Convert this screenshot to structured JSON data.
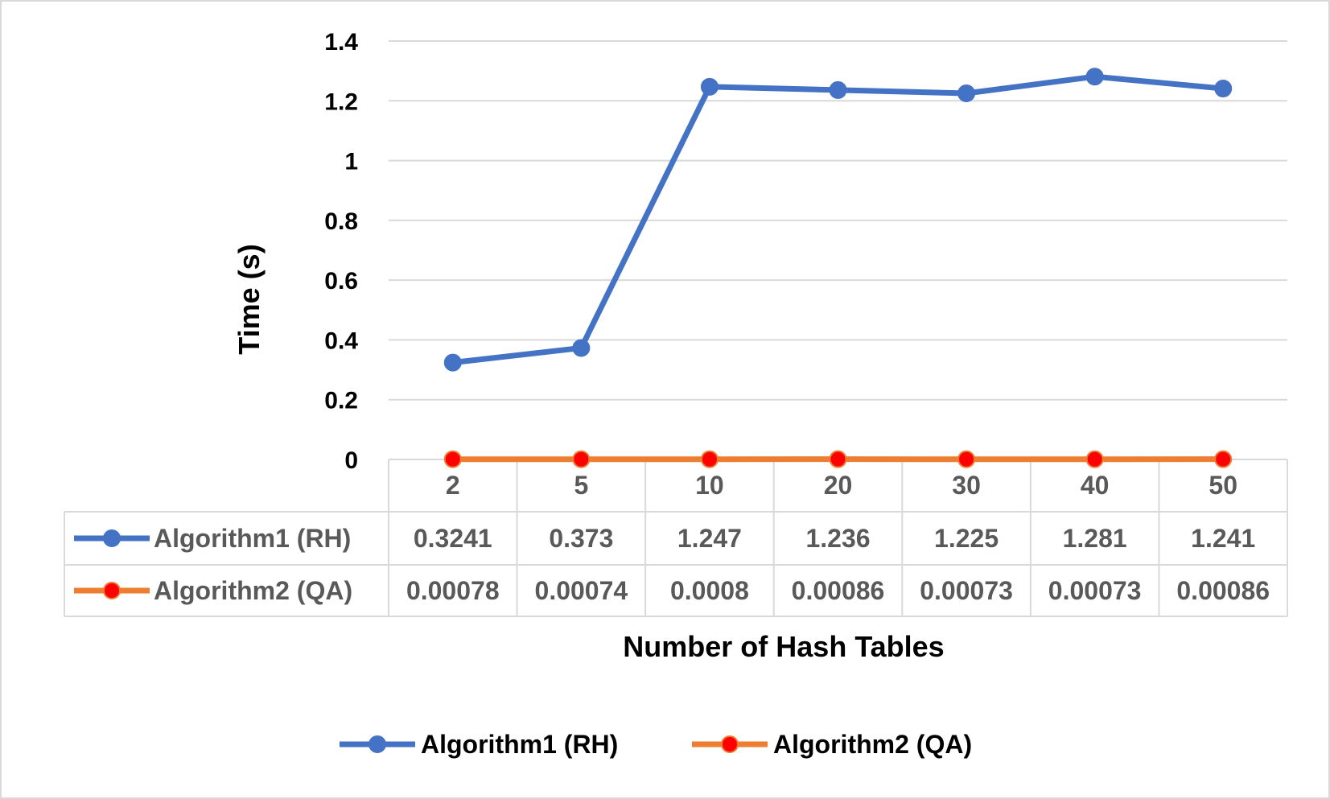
{
  "chart_data": {
    "type": "line",
    "title": "",
    "xlabel": "Number of Hash Tables",
    "ylabel": "Time (s)",
    "ylim": [
      0,
      1.4
    ],
    "yticks": [
      "0",
      "0.2",
      "0.4",
      "0.6",
      "0.8",
      "1",
      "1.2",
      "1.4"
    ],
    "ytick_values": [
      0,
      0.2,
      0.4,
      0.6,
      0.8,
      1.0,
      1.2,
      1.4
    ],
    "grid": true,
    "legend_position": "bottom",
    "data_table": true,
    "categories": [
      "2",
      "5",
      "10",
      "20",
      "30",
      "40",
      "50"
    ],
    "series": [
      {
        "name": "Algorithm1 (RH)",
        "values": [
          0.3241,
          0.373,
          1.247,
          1.236,
          1.225,
          1.281,
          1.241
        ],
        "labels": [
          "0.3241",
          "0.373",
          "1.247",
          "1.236",
          "1.225",
          "1.281",
          "1.241"
        ],
        "line_color": "#4472C4",
        "marker_color": "#4472C4"
      },
      {
        "name": "Algorithm2 (QA)",
        "values": [
          0.00078,
          0.00074,
          0.0008,
          0.00086,
          0.00073,
          0.00073,
          0.00086
        ],
        "labels": [
          "0.00078",
          "0.00074",
          "0.0008",
          "0.00086",
          "0.00073",
          "0.00073",
          "0.00086"
        ],
        "line_color": "#ED7D31",
        "marker_color": "#FF0000"
      }
    ]
  }
}
